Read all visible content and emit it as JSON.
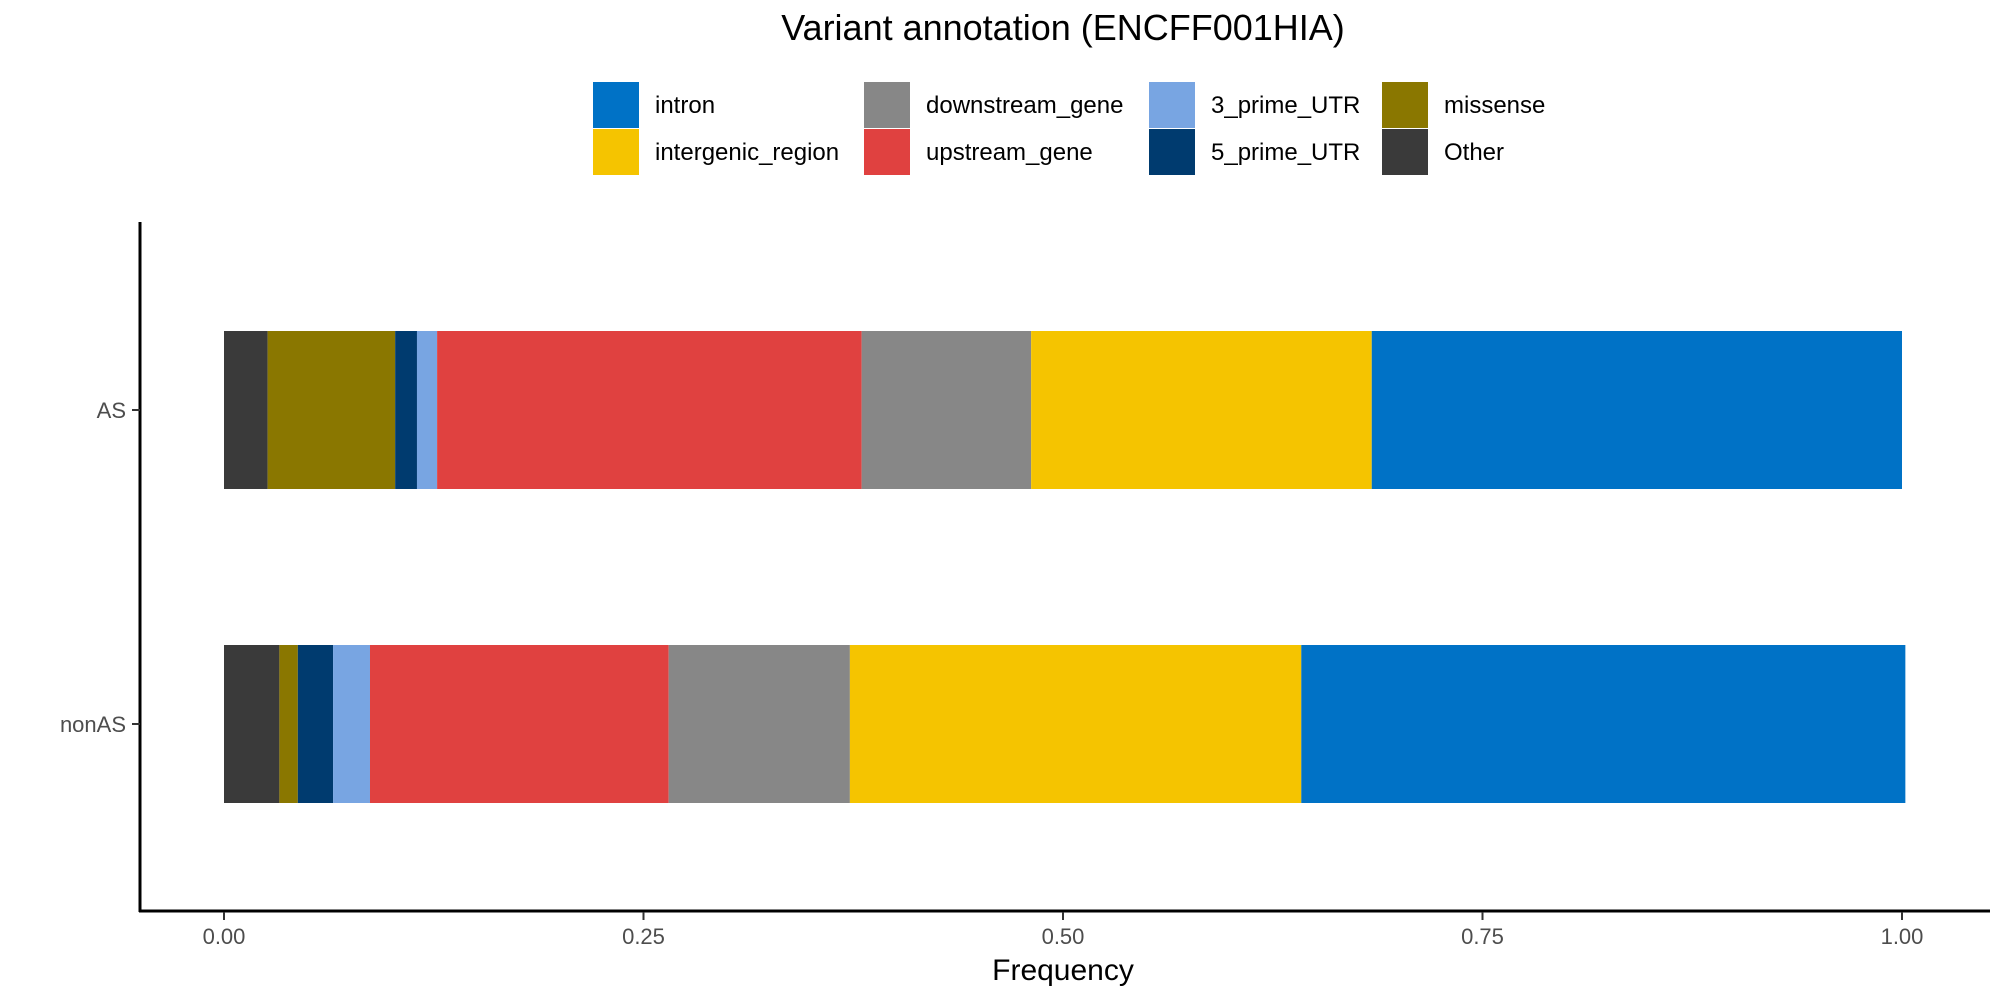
{
  "chart_data": {
    "type": "bar",
    "orientation": "horizontal",
    "stacked": true,
    "title": "Variant annotation (ENCFF001HIA)",
    "xlabel": "Frequency",
    "ylabel": "",
    "xlim": [
      0,
      1
    ],
    "x_ticks": [
      0,
      0.25,
      0.5,
      0.75,
      1
    ],
    "x_tick_labels": [
      "0.00",
      "0.25",
      "0.50",
      "0.75",
      "1.00"
    ],
    "categories": [
      "AS",
      "nonAS"
    ],
    "grid": false,
    "legend_position": "top",
    "stack_order": [
      "Other",
      "missense",
      "5_prime_UTR",
      "3_prime_UTR",
      "upstream_gene",
      "downstream_gene",
      "intergenic_region",
      "intron"
    ],
    "series": [
      {
        "name": "intron",
        "color": "#0072C6",
        "values": [
          0.316,
          0.36
        ]
      },
      {
        "name": "intergenic_region",
        "color": "#F5C400",
        "values": [
          0.203,
          0.269
        ]
      },
      {
        "name": "downstream_gene",
        "color": "#878787",
        "values": [
          0.101,
          0.108
        ]
      },
      {
        "name": "upstream_gene",
        "color": "#E04140",
        "values": [
          0.253,
          0.178
        ]
      },
      {
        "name": "3_prime_UTR",
        "color": "#78A5E2",
        "values": [
          0.012,
          0.022
        ]
      },
      {
        "name": "5_prime_UTR",
        "color": "#003B6F",
        "values": [
          0.013,
          0.021
        ]
      },
      {
        "name": "missense",
        "color": "#8A7700",
        "values": [
          0.076,
          0.011
        ]
      },
      {
        "name": "Other",
        "color": "#3A3A3A",
        "values": [
          0.026,
          0.033
        ]
      }
    ]
  }
}
